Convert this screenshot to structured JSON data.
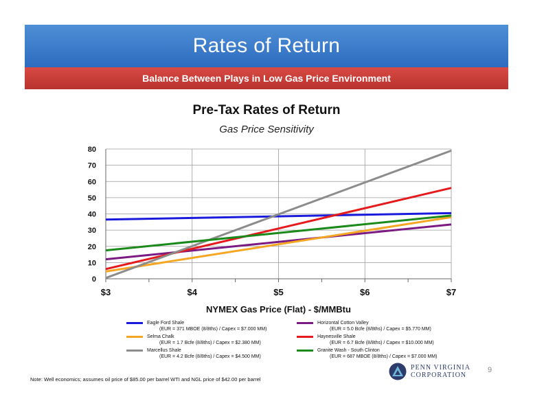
{
  "slide": {
    "title": "Rates of Return",
    "subtitle": "Balance Between Plays in Low Gas Price Environment",
    "note": "Note: Well economics; assumes oil price of $85.00 per barrel WTI and NGL price of $42.00 per barrel",
    "page_number": "9",
    "logo": {
      "line1": "PENN VIRGINIA",
      "line2": "CORPORATION",
      "icon": "triangle-logo-icon"
    }
  },
  "chart_data": {
    "type": "line",
    "title": "Pre-Tax Rates of Return",
    "subtitle": "Gas Price Sensitivity",
    "xlabel": "NYMEX Gas Price (Flat) - $/MMBtu",
    "ylabel": "",
    "x": [
      3,
      7
    ],
    "x_ticks": [
      "$3",
      "$4",
      "$5",
      "$6",
      "$7"
    ],
    "xlim": [
      3,
      7
    ],
    "y_ticks": [
      "0",
      "10",
      "20",
      "30",
      "40",
      "50",
      "60",
      "70",
      "80"
    ],
    "ylim": [
      0,
      80
    ],
    "grid": true,
    "legend_position": "bottom",
    "series": [
      {
        "name": "Eagle Ford Shale",
        "detail": "(EUR = 371 MBOE (8/8ths) / Capex = $7.000 MM)",
        "color": "#1a1adc",
        "values": [
          36.5,
          40.5
        ]
      },
      {
        "name": "Horizontal Cotton Valley",
        "detail": "(EUR = 5.0 Bcfe (8/8ths) / Capex = $5.770 MM)",
        "color": "#7b1a82",
        "values": [
          12,
          33.5
        ]
      },
      {
        "name": "Selma Chalk",
        "detail": "(EUR = 1.7 Bcfe (8/8ths) / Capex = $2.380 MM)",
        "color": "#f5a623",
        "values": [
          4.5,
          38
        ]
      },
      {
        "name": "Haynesville Shale",
        "detail": "(EUR = 6.7 Bcfe (8/8ths) / Capex = $10.000 MM)",
        "color": "#e41a1c",
        "values": [
          6,
          56
        ]
      },
      {
        "name": "Marcellus Shale",
        "detail": "(EUR = 4.2 Bcfe (8/8ths) / Capex = $4.500 MM)",
        "color": "#8c8c8c",
        "values": [
          0.5,
          79
        ]
      },
      {
        "name": "Granite Wash - South Clinton",
        "detail": "(EUR = 687 MBOE (8/8ths) / Capex = $7.000 MM)",
        "color": "#1a8a1a",
        "values": [
          17.5,
          39
        ]
      }
    ]
  }
}
